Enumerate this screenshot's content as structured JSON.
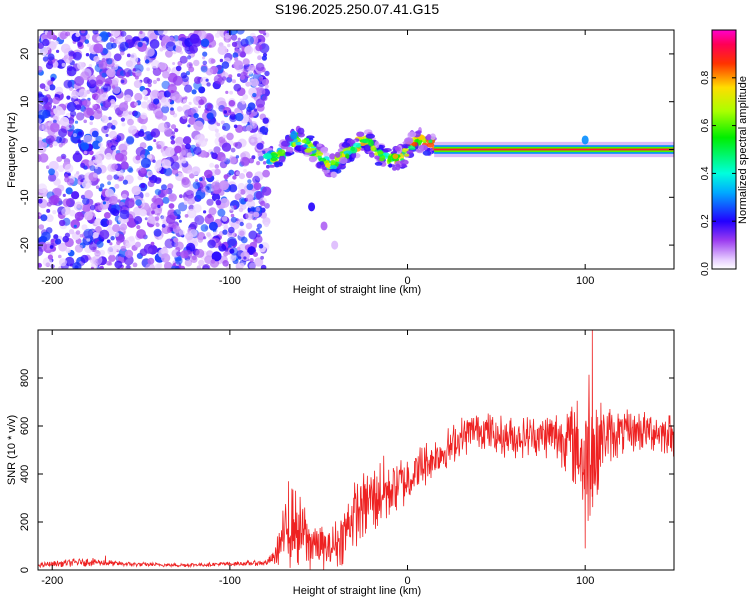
{
  "figure_title": "S196.2025.250.07.41.G15",
  "chart_data": [
    {
      "type": "heatmap",
      "title": "S196.2025.250.07.41.G15",
      "xlabel": "Height of straight line (km)",
      "ylabel": "Frequency (Hz)",
      "xlim": [
        -208,
        150
      ],
      "ylim": [
        -25,
        25
      ],
      "xticks": [
        -200,
        -100,
        0,
        100
      ],
      "yticks": [
        -20,
        -10,
        0,
        10,
        20
      ],
      "xtick_labels": [
        "-200",
        "-100",
        "0",
        "100"
      ],
      "ytick_labels": [
        "-20",
        "-10",
        "0",
        "10",
        "20"
      ],
      "colorbar": {
        "label": "Normalized spectral amplitude",
        "range": [
          0,
          1
        ],
        "ticks": [
          0.0,
          0.2,
          0.4,
          0.6,
          0.8
        ],
        "tick_labels": [
          "0.0",
          "0.2",
          "0.4",
          "0.6",
          "0.8"
        ],
        "colormap": "rainbow (white-violet-blue-cyan-green-yellow-red-magenta)"
      },
      "regions": [
        {
          "name": "noise",
          "x_range": [
            -208,
            -79
          ],
          "freq_range": [
            -25,
            25
          ],
          "amplitude": "low (0.0-0.3)"
        },
        {
          "name": "transition",
          "x_range": [
            -79,
            15
          ],
          "freq_center": 0,
          "amplitude": "0.2-0.8"
        },
        {
          "name": "steady carrier",
          "x_range": [
            15,
            150
          ],
          "freq_center": 0,
          "amplitude": "0.8-1.0"
        }
      ],
      "features": [
        {
          "x": -64,
          "freq": 3,
          "amplitude": 0.3
        },
        {
          "x": -54,
          "freq": -12,
          "amplitude": 0.2
        },
        {
          "x": -47,
          "freq": -16,
          "amplitude": 0.1
        },
        {
          "x": -41,
          "freq": -20,
          "amplitude": 0.05
        },
        {
          "x": 100,
          "freq": 2,
          "amplitude": 0.3
        }
      ]
    },
    {
      "type": "line",
      "xlabel": "Height of straight line (km)",
      "ylabel": "SNR (10 * v/v)",
      "xlim": [
        -208,
        150
      ],
      "ylim": [
        0,
        1000
      ],
      "xticks": [
        -200,
        -100,
        0,
        100
      ],
      "yticks": [
        0,
        200,
        400,
        600,
        800
      ],
      "xtick_labels": [
        "-200",
        "-100",
        "0",
        "100"
      ],
      "ytick_labels": [
        "0",
        "200",
        "400",
        "600",
        "800"
      ],
      "series": [
        {
          "name": "SNR",
          "color": "#ee2222",
          "envelope": {
            "x": [
              -208,
              -180,
              -160,
              -130,
              -100,
              -80,
              -75,
              -70,
              -65,
              -60,
              -55,
              -50,
              -45,
              -40,
              -35,
              -30,
              -25,
              -20,
              -10,
              0,
              10,
              20,
              30,
              40,
              50,
              60,
              70,
              80,
              90,
              95,
              100,
              103,
              105,
              108,
              110,
              120,
              130,
              140,
              150
            ],
            "mean": [
              20,
              35,
              25,
              20,
              25,
              30,
              50,
              140,
              180,
              160,
              120,
              100,
              80,
              110,
              160,
              230,
              270,
              300,
              340,
              380,
              440,
              490,
              550,
              590,
              560,
              550,
              560,
              560,
              550,
              520,
              450,
              600,
              450,
              520,
              560,
              570,
              580,
              580,
              560
            ],
            "amp": [
              10,
              20,
              10,
              8,
              10,
              12,
              30,
              120,
              180,
              150,
              130,
              100,
              80,
              110,
              130,
              140,
              150,
              160,
              150,
              110,
              100,
              90,
              90,
              80,
              90,
              90,
              90,
              100,
              150,
              200,
              300,
              420,
              330,
              200,
              130,
              100,
              90,
              90,
              90
            ]
          },
          "notable_points": [
            {
              "x": -170,
              "y": 60
            },
            {
              "x": -67,
              "y": 370
            },
            {
              "x": 100,
              "y": 90
            },
            {
              "x": 104,
              "y": 1000
            }
          ]
        }
      ]
    }
  ]
}
